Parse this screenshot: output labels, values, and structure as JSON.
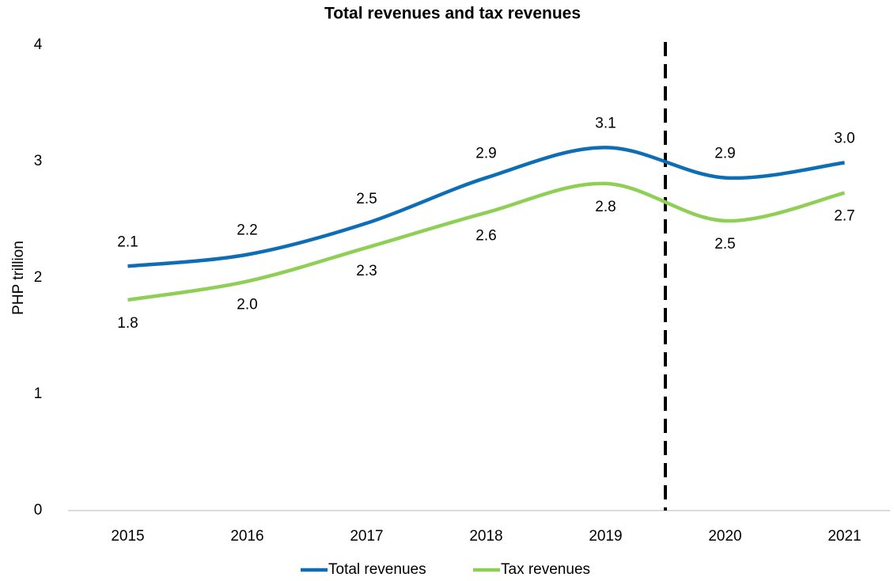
{
  "chart_data": {
    "type": "line",
    "title": "Total revenues and tax revenues",
    "y_label": "PHP trillion",
    "categories": [
      "2015",
      "2016",
      "2017",
      "2018",
      "2019",
      "2020",
      "2021"
    ],
    "series": [
      {
        "name": "Total revenues",
        "color": "#0e6eb5",
        "values": [
          2.1,
          2.2,
          2.47,
          2.86,
          3.12,
          2.86,
          2.99
        ],
        "value_labels": [
          "2.1",
          "2.2",
          "2.5",
          "2.9",
          "3.1",
          "2.9",
          "3.0"
        ]
      },
      {
        "name": "Tax revenues",
        "color": "#8fcf55",
        "values": [
          1.81,
          1.97,
          2.26,
          2.56,
          2.81,
          2.49,
          2.73
        ],
        "value_labels": [
          "1.8",
          "2.0",
          "2.3",
          "2.6",
          "2.8",
          "2.5",
          "2.7"
        ]
      }
    ],
    "ylim": [
      0,
      4
    ],
    "yticks": [
      0,
      1,
      2,
      3,
      4
    ],
    "grid": false,
    "legend": "bottom",
    "smooth": true
  }
}
